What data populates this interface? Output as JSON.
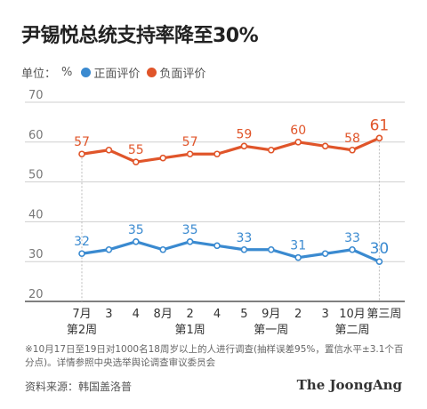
{
  "title": "尹锡悦总统支持率降至30%",
  "unit_label": "单位：",
  "unit_symbol": "%",
  "footnote": "※10月17日至19日对1000名18周岁以上的人进行调查(抽样误差95%，置信水平±3.1个百分点)。详情参照中央选举舆论调查审议委员会",
  "source": "资料来源：韩国盖洛普",
  "logo": "The JoongAng",
  "colors": {
    "positive": "#3a8ad0",
    "negative": "#e0552a",
    "grid": "#cfcfcf",
    "axis": "#333333"
  },
  "chart_data": {
    "type": "line",
    "ylim": [
      20,
      70
    ],
    "yticks": [
      20,
      30,
      40,
      50,
      60,
      70
    ],
    "grid": true,
    "legend_position": "top-left",
    "x_tick_labels": [
      "7月",
      "3",
      "4",
      "8月",
      "2",
      "4",
      "5",
      "9月",
      "2",
      "3",
      "10月",
      "第三周"
    ],
    "x_sub_labels": [
      {
        "index": 0,
        "text": "第2周"
      },
      {
        "index": 4,
        "text": "第1周"
      },
      {
        "index": 7,
        "text": "第一周"
      },
      {
        "index": 10,
        "text": "第二周"
      }
    ],
    "reference_indices": [
      0,
      11
    ],
    "series": [
      {
        "name": "正面评价",
        "color": "#3a8ad0",
        "values": [
          32,
          33,
          35,
          33,
          35,
          34,
          33,
          33,
          31,
          32,
          33,
          30
        ],
        "labeled_points": [
          {
            "index": 0,
            "label": "32"
          },
          {
            "index": 2,
            "label": "35"
          },
          {
            "index": 4,
            "label": "35"
          },
          {
            "index": 6,
            "label": "33"
          },
          {
            "index": 8,
            "label": "31"
          },
          {
            "index": 10,
            "label": "33"
          },
          {
            "index": 11,
            "label": "30"
          }
        ]
      },
      {
        "name": "负面评价",
        "color": "#e0552a",
        "values": [
          57,
          58,
          55,
          56,
          57,
          57,
          59,
          58,
          60,
          59,
          58,
          61
        ],
        "labeled_points": [
          {
            "index": 0,
            "label": "57"
          },
          {
            "index": 2,
            "label": "55"
          },
          {
            "index": 4,
            "label": "57"
          },
          {
            "index": 6,
            "label": "59"
          },
          {
            "index": 8,
            "label": "60"
          },
          {
            "index": 10,
            "label": "58"
          },
          {
            "index": 11,
            "label": "61"
          }
        ]
      }
    ]
  }
}
